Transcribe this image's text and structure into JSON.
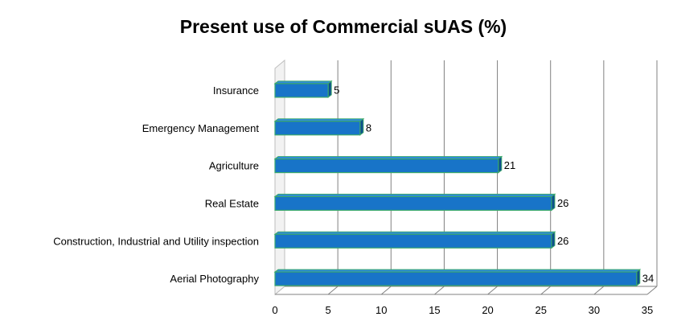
{
  "chart_data": {
    "type": "bar",
    "orientation": "horizontal",
    "title": "Present use of Commercial sUAS (%)",
    "xlabel": "",
    "ylabel": "",
    "categories": [
      "Insurance",
      "Emergency Management",
      "Agriculture",
      "Real Estate",
      "Construction, Industrial and Utility inspection",
      "Aerial Photography"
    ],
    "values": [
      5,
      8,
      21,
      26,
      26,
      34
    ],
    "xlim": [
      0,
      35
    ],
    "xticks": [
      0,
      5,
      10,
      15,
      20,
      25,
      30,
      35
    ],
    "grid": true,
    "legend": "none",
    "data_labels": true,
    "style": "3d",
    "colors": {
      "bar_face": "#1874c8",
      "bar_top": "#2e8ae0",
      "bar_side": "#0d4f8c",
      "bar_outline": "#3aa86b",
      "gridline": "#808080",
      "wall": "#bfbfbf"
    }
  }
}
